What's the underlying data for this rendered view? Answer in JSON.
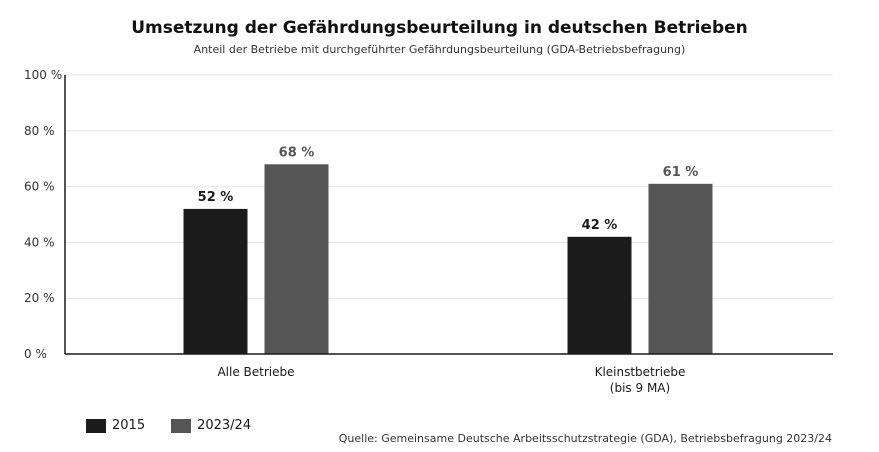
{
  "chart_data": {
    "type": "bar",
    "title": "Umsetzung der Gefährdungsbeurteilung in deutschen Betrieben",
    "subtitle": "Anteil der Betriebe mit durchgeführter Gefährdungsbeurteilung (GDA-Betriebsbefragung)",
    "categories": [
      [
        "Alle Betriebe"
      ],
      [
        "Kleinstbetriebe",
        "(bis 9 MA)"
      ]
    ],
    "series": [
      {
        "name": "2015",
        "values": [
          52,
          42
        ],
        "labels": [
          "52 %",
          "42 %"
        ],
        "color": "#1c1c1c",
        "label_color": "#1c1c1c"
      },
      {
        "name": "2023/24",
        "values": [
          68,
          61
        ],
        "labels": [
          "68 %",
          "61 %"
        ],
        "color": "#555555",
        "label_color": "#555555"
      }
    ],
    "ylim": [
      0,
      100
    ],
    "yticks": [
      0,
      20,
      40,
      60,
      80,
      100
    ],
    "ytick_labels": [
      "0 %",
      "20 %",
      "40 %",
      "60 %",
      "80 %",
      "100 %"
    ],
    "grid": true,
    "legend_position": "bottom-left",
    "source": "Quelle: Gemeinsame Deutsche Arbeitsschutzstrategie (GDA), Betriebsbefragung 2023/24"
  }
}
